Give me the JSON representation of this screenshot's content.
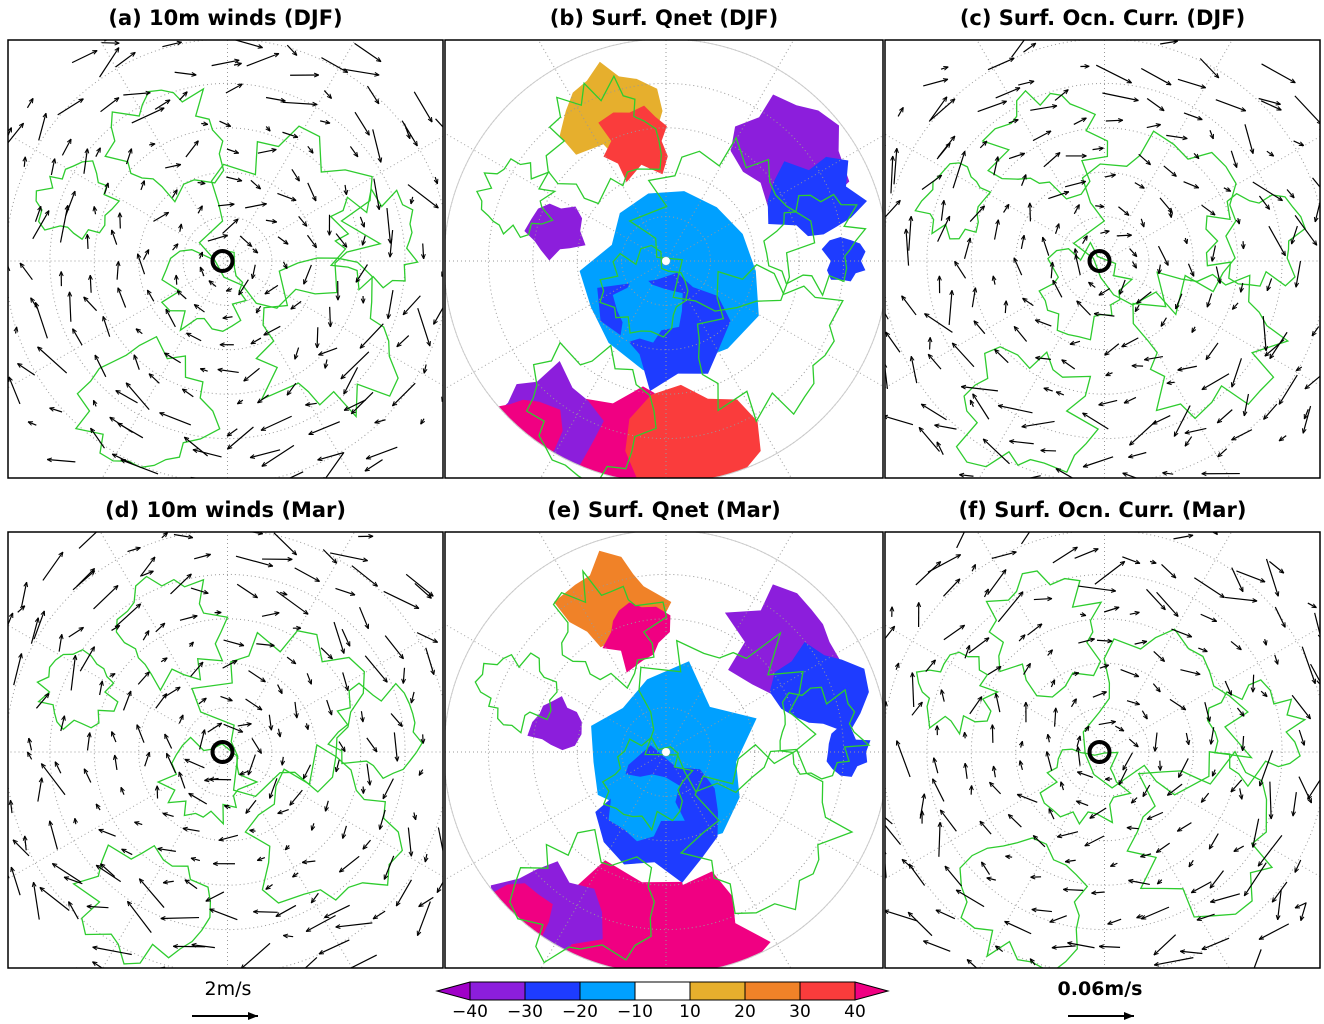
{
  "panels": [
    {
      "title": "(a) 10m winds (DJF)",
      "kind": "vector"
    },
    {
      "title": "(b) Surf. Qnet (DJF)",
      "kind": "flux"
    },
    {
      "title": "(c) Surf. Ocn. Curr. (DJF)",
      "kind": "vector"
    },
    {
      "title": "(d) 10m winds (Mar)",
      "kind": "vector"
    },
    {
      "title": "(e) Surf. Qnet (Mar)",
      "kind": "flux"
    },
    {
      "title": "(f) Surf. Ocn. Curr. (Mar)",
      "kind": "vector"
    }
  ],
  "colorbar": {
    "ticks": [
      {
        "value": -40,
        "label": "−40"
      },
      {
        "value": -30,
        "label": "−30"
      },
      {
        "value": -20,
        "label": "−20"
      },
      {
        "value": -10,
        "label": "−10"
      },
      10,
      20,
      30,
      40
    ],
    "colors": [
      "#a000c8",
      "#8c1edc",
      "#1e3cff",
      "#00a0ff",
      "#ffffff",
      "#e6af2d",
      "#f08228",
      "#fa3c3c",
      "#f00082"
    ]
  },
  "reference_vectors": {
    "wind": "2m/s",
    "current": "0.06m/s"
  }
}
